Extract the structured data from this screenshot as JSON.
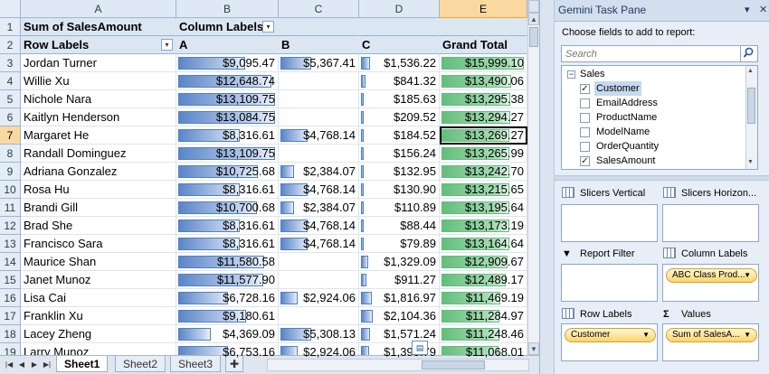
{
  "columns": [
    "A",
    "B",
    "C",
    "D",
    "E"
  ],
  "pivot": {
    "values_caption": "Sum of SalesAmount",
    "column_labels_caption": "Column Labels",
    "row_labels_caption": "Row Labels",
    "column_headers": [
      "A",
      "B",
      "C",
      "Grand Total"
    ],
    "rows": [
      {
        "n": "3",
        "name": "Jordan Turner",
        "a": "$9,095.47",
        "b": "$5,367.41",
        "c": "$1,536.22",
        "t": "$15,999.10",
        "av": 9095.47,
        "bv": 5367.41,
        "cv": 1536.22,
        "tv": 15999.1
      },
      {
        "n": "4",
        "name": "Willie Xu",
        "a": "$12,648.74",
        "b": "",
        "c": "$841.32",
        "t": "$13,490.06",
        "av": 12648.74,
        "bv": 0,
        "cv": 841.32,
        "tv": 13490.06
      },
      {
        "n": "5",
        "name": "Nichole Nara",
        "a": "$13,109.75",
        "b": "",
        "c": "$185.63",
        "t": "$13,295.38",
        "av": 13109.75,
        "bv": 0,
        "cv": 185.63,
        "tv": 13295.38
      },
      {
        "n": "6",
        "name": "Kaitlyn Henderson",
        "a": "$13,084.75",
        "b": "",
        "c": "$209.52",
        "t": "$13,294.27",
        "av": 13084.75,
        "bv": 0,
        "cv": 209.52,
        "tv": 13294.27
      },
      {
        "n": "7",
        "name": "Margaret He",
        "a": "$8,316.61",
        "b": "$4,768.14",
        "c": "$184.52",
        "t": "$13,269.27",
        "av": 8316.61,
        "bv": 4768.14,
        "cv": 184.52,
        "tv": 13269.27
      },
      {
        "n": "8",
        "name": "Randall Dominguez",
        "a": "$13,109.75",
        "b": "",
        "c": "$156.24",
        "t": "$13,265.99",
        "av": 13109.75,
        "bv": 0,
        "cv": 156.24,
        "tv": 13265.99
      },
      {
        "n": "9",
        "name": "Adriana Gonzalez",
        "a": "$10,725.68",
        "b": "$2,384.07",
        "c": "$132.95",
        "t": "$13,242.70",
        "av": 10725.68,
        "bv": 2384.07,
        "cv": 132.95,
        "tv": 13242.7
      },
      {
        "n": "10",
        "name": "Rosa Hu",
        "a": "$8,316.61",
        "b": "$4,768.14",
        "c": "$130.90",
        "t": "$13,215.65",
        "av": 8316.61,
        "bv": 4768.14,
        "cv": 130.9,
        "tv": 13215.65
      },
      {
        "n": "11",
        "name": "Brandi Gill",
        "a": "$10,700.68",
        "b": "$2,384.07",
        "c": "$110.89",
        "t": "$13,195.64",
        "av": 10700.68,
        "bv": 2384.07,
        "cv": 110.89,
        "tv": 13195.64
      },
      {
        "n": "12",
        "name": "Brad She",
        "a": "$8,316.61",
        "b": "$4,768.14",
        "c": "$88.44",
        "t": "$13,173.19",
        "av": 8316.61,
        "bv": 4768.14,
        "cv": 88.44,
        "tv": 13173.19
      },
      {
        "n": "13",
        "name": "Francisco Sara",
        "a": "$8,316.61",
        "b": "$4,768.14",
        "c": "$79.89",
        "t": "$13,164.64",
        "av": 8316.61,
        "bv": 4768.14,
        "cv": 79.89,
        "tv": 13164.64
      },
      {
        "n": "14",
        "name": "Maurice Shan",
        "a": "$11,580.58",
        "b": "",
        "c": "$1,329.09",
        "t": "$12,909.67",
        "av": 11580.58,
        "bv": 0,
        "cv": 1329.09,
        "tv": 12909.67
      },
      {
        "n": "15",
        "name": "Janet Munoz",
        "a": "$11,577.90",
        "b": "",
        "c": "$911.27",
        "t": "$12,489.17",
        "av": 11577.9,
        "bv": 0,
        "cv": 911.27,
        "tv": 12489.17
      },
      {
        "n": "16",
        "name": "Lisa Cai",
        "a": "$6,728.16",
        "b": "$2,924.06",
        "c": "$1,816.97",
        "t": "$11,469.19",
        "av": 6728.16,
        "bv": 2924.06,
        "cv": 1816.97,
        "tv": 11469.19
      },
      {
        "n": "17",
        "name": "Franklin Xu",
        "a": "$9,180.61",
        "b": "",
        "c": "$2,104.36",
        "t": "$11,284.97",
        "av": 9180.61,
        "bv": 0,
        "cv": 2104.36,
        "tv": 11284.97
      },
      {
        "n": "18",
        "name": "Lacey Zheng",
        "a": "$4,369.09",
        "b": "$5,308.13",
        "c": "$1,571.24",
        "t": "$11,248.46",
        "av": 4369.09,
        "bv": 5308.13,
        "cv": 1571.24,
        "tv": 11248.46
      },
      {
        "n": "19",
        "name": "Larry Munoz",
        "a": "$6,753.16",
        "b": "$2,924.06",
        "c": "$1,390.79",
        "t": "$11,068.01",
        "av": 6753.16,
        "bv": 2924.06,
        "cv": 1390.79,
        "tv": 11068.01
      }
    ]
  },
  "tabs": [
    "Sheet1",
    "Sheet2",
    "Sheet3"
  ],
  "pane": {
    "title": "Gemini Task Pane",
    "choose_label": "Choose fields to add to report:",
    "search_placeholder": "Search",
    "table_name": "Sales",
    "fields": [
      {
        "name": "Customer",
        "checked": true,
        "selected": true
      },
      {
        "name": "EmailAddress",
        "checked": false,
        "selected": false
      },
      {
        "name": "ProductName",
        "checked": false,
        "selected": false
      },
      {
        "name": "ModelName",
        "checked": false,
        "selected": false
      },
      {
        "name": "OrderQuantity",
        "checked": false,
        "selected": false
      },
      {
        "name": "SalesAmount",
        "checked": true,
        "selected": false
      }
    ],
    "areas": {
      "slicers_vertical": "Slicers Vertical",
      "slicers_horizontal": "Slicers Horizon...",
      "report_filter": "Report Filter",
      "column_labels": "Column Labels",
      "column_labels_item": "ABC Class Prod...",
      "row_labels": "Row Labels",
      "row_labels_item": "Customer",
      "values": "Values",
      "values_item": "Sum of SalesA..."
    }
  },
  "colors": {
    "bar": "#5b85c9",
    "grand_bar": "#63be7b",
    "selection": "#f9d99f"
  },
  "active_cell": "E7"
}
